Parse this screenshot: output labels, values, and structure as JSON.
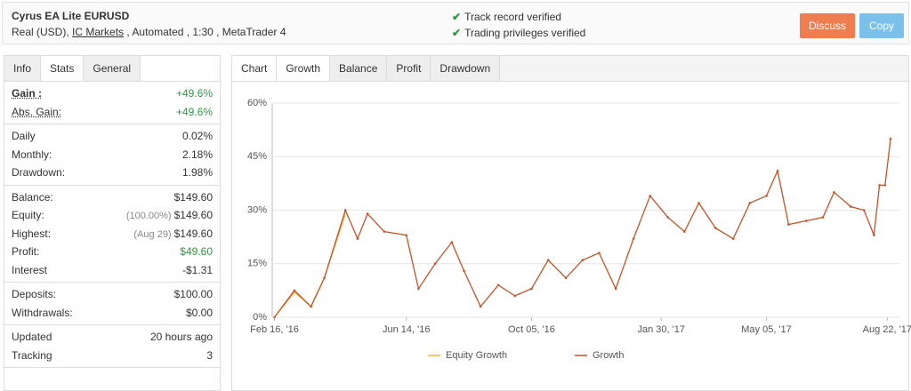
{
  "header": {
    "title": "Cyrus EA Lite EURUSD",
    "account": "Real (USD),",
    "broker": "IC Markets",
    "details": ", Automated , 1:30 , MetaTrader 4",
    "verified": [
      "Track record verified",
      "Trading privileges verified"
    ],
    "buttons": [
      "Discuss",
      "Copy"
    ]
  },
  "stats_tabs": [
    "Info",
    "Stats",
    "General"
  ],
  "stats": [
    [
      {
        "label": "Gain :",
        "value": "+49.6%"
      },
      {
        "label": "Abs. Gain:",
        "value": "+49.6%"
      }
    ],
    [
      {
        "label": "Daily",
        "value": "0.02%"
      },
      {
        "label": "Monthly:",
        "value": "2.18%"
      },
      {
        "label": "Drawdown:",
        "value": "1.98%"
      }
    ],
    [
      {
        "label": "Balance:",
        "value": "$149.60"
      },
      {
        "label": "Equity:",
        "note": "(100.00%)",
        "value": "$149.60"
      },
      {
        "label": "Highest:",
        "note": "(Aug 29)",
        "value": "$149.60"
      },
      {
        "label": "Profit:",
        "value": "$49.60"
      },
      {
        "label": "Interest",
        "value": "-$1.31"
      }
    ],
    [
      {
        "label": "Deposits:",
        "value": "$100.00"
      },
      {
        "label": "Withdrawals:",
        "value": "$0.00"
      }
    ],
    [
      {
        "label": "Updated",
        "value": "20 hours ago"
      },
      {
        "label": "Tracking",
        "value": "3"
      }
    ]
  ],
  "chart_tabs": [
    "Chart",
    "Growth",
    "Balance",
    "Profit",
    "Drawdown"
  ],
  "chart_data": {
    "type": "line",
    "x": [
      "2016-02-16",
      "2016-03-05",
      "2016-03-20",
      "2016-04-01",
      "2016-04-20",
      "2016-05-01",
      "2016-05-10",
      "2016-05-25",
      "2016-06-14",
      "2016-06-25",
      "2016-07-10",
      "2016-07-25",
      "2016-08-05",
      "2016-08-20",
      "2016-09-05",
      "2016-09-20",
      "2016-10-05",
      "2016-10-20",
      "2016-11-05",
      "2016-11-20",
      "2016-12-05",
      "2016-12-20",
      "2017-01-05",
      "2017-01-20",
      "2017-02-05",
      "2017-02-20",
      "2017-03-05",
      "2017-03-20",
      "2017-04-05",
      "2017-04-20",
      "2017-05-05",
      "2017-05-15",
      "2017-05-25",
      "2017-06-10",
      "2017-06-25",
      "2017-07-05",
      "2017-07-20",
      "2017-08-01",
      "2017-08-10",
      "2017-08-15",
      "2017-08-20",
      "2017-08-25"
    ],
    "series": [
      {
        "name": "Equity Growth",
        "color": "#f5b335",
        "values": [
          0,
          7,
          3,
          11,
          29,
          null,
          null,
          null,
          null,
          null,
          null,
          null,
          null,
          null,
          null,
          null,
          null,
          null,
          null,
          null,
          null,
          null,
          null,
          null,
          null,
          null,
          null,
          null,
          null,
          null,
          null,
          null,
          null,
          null,
          null,
          null,
          null,
          null,
          null,
          null,
          null,
          null
        ]
      },
      {
        "name": "Growth",
        "color": "#c0552b",
        "values": [
          0,
          7.5,
          3,
          11,
          30,
          22,
          29,
          24,
          23,
          8,
          15,
          21,
          13,
          3,
          9,
          6,
          8,
          16,
          11,
          16,
          18,
          8,
          22,
          34,
          28,
          24,
          32,
          25,
          22,
          32,
          34,
          41,
          26,
          27,
          28,
          35,
          31,
          30,
          23,
          37,
          37,
          50
        ]
      }
    ],
    "xlim": [
      "2016-02-14",
      "2017-09-02"
    ],
    "xticks": [
      {
        "value": "2016-02-16",
        "label": "Feb 16, '16"
      },
      {
        "value": "2016-06-14",
        "label": "Jun 14, '16"
      },
      {
        "value": "2016-10-05",
        "label": "Oct 05, '16"
      },
      {
        "value": "2017-01-30",
        "label": "Jan 30, '17"
      },
      {
        "value": "2017-05-05",
        "label": "May 05, '17"
      },
      {
        "value": "2017-08-22",
        "label": "Aug 22, '17"
      }
    ],
    "ylim": [
      0,
      60
    ],
    "yticks": [
      {
        "value": 0,
        "label": "0%"
      },
      {
        "value": 15,
        "label": "15%"
      },
      {
        "value": 30,
        "label": "30%"
      },
      {
        "value": 45,
        "label": "45%"
      },
      {
        "value": 60,
        "label": "60%"
      }
    ],
    "grid": true
  }
}
